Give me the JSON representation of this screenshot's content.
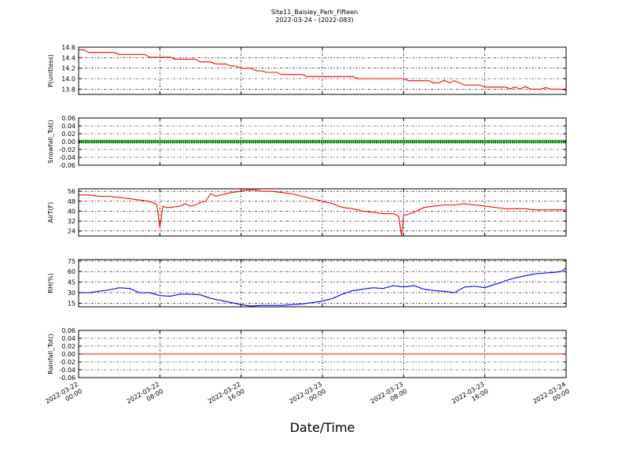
{
  "figure": {
    "title_line1": "Site11_Baisley_Park_Fifteen",
    "title_line2": "2022-03-24 - (2022-083)",
    "xlabel": "Date/Time"
  },
  "chart_data": [
    {
      "type": "line",
      "ylabel": "P(unitless)",
      "ylim": [
        13.7,
        14.6
      ],
      "yticks": [
        "14.6",
        "14.4",
        "14.2",
        "14.0",
        "13.8"
      ],
      "grid": true,
      "series": [
        {
          "color": "#ff0000",
          "x": [
            0,
            0.5,
            1,
            1.5,
            2,
            2.5,
            3,
            3.5,
            4,
            4.5,
            5,
            5.5,
            6,
            6.5,
            7,
            7.5,
            8,
            8.5,
            9,
            9.5,
            10,
            10.5,
            11,
            11.5,
            12,
            12.5,
            13,
            13.5,
            14,
            14.5,
            15,
            15.5,
            16,
            16.5,
            17,
            17.5,
            18,
            18.5,
            19,
            19.5,
            20,
            20.5,
            21,
            21.5,
            22,
            22.5,
            23,
            23.5,
            24,
            24.5,
            25,
            25.5,
            26,
            26.5,
            27,
            27.5,
            28,
            28.5,
            29,
            29.5,
            30,
            30.5,
            31,
            31.5,
            32,
            32.5,
            33,
            33.5,
            34,
            34.5,
            35,
            35.5,
            36,
            36.5,
            37,
            37.5,
            38,
            38.5,
            39,
            39.5,
            40,
            40.5,
            41,
            41.5,
            42,
            42.5,
            43,
            43.5,
            44,
            44.5,
            45,
            45.5,
            46,
            46.5,
            47,
            47.5,
            48
          ],
          "y": [
            14.55,
            14.55,
            14.5,
            14.5,
            14.5,
            14.5,
            14.5,
            14.5,
            14.46,
            14.46,
            14.46,
            14.46,
            14.46,
            14.46,
            14.41,
            14.41,
            14.41,
            14.41,
            14.41,
            14.37,
            14.37,
            14.37,
            14.37,
            14.37,
            14.32,
            14.32,
            14.32,
            14.28,
            14.28,
            14.28,
            14.24,
            14.24,
            14.2,
            14.2,
            14.2,
            14.15,
            14.15,
            14.12,
            14.12,
            14.12,
            14.08,
            14.08,
            14.08,
            14.08,
            14.08,
            14.04,
            14.04,
            14.04,
            14.04,
            14.04,
            14.04,
            14.04,
            14.04,
            14.04,
            14.04,
            14.0,
            14.0,
            14.0,
            14.0,
            14.0,
            14.0,
            14.0,
            14.0,
            14.0,
            14.0,
            13.96,
            13.96,
            13.96,
            13.96,
            13.96,
            13.92,
            13.92,
            13.97,
            13.92,
            13.96,
            13.92,
            13.88,
            13.88,
            13.88,
            13.88,
            13.84,
            13.84,
            13.84,
            13.84,
            13.84,
            13.81,
            13.84,
            13.8,
            13.85,
            13.8,
            13.8,
            13.8,
            13.83,
            13.8,
            13.8,
            13.8,
            13.78
          ]
        }
      ]
    },
    {
      "type": "line",
      "ylabel": "Snowfall_Tot()",
      "ylim": [
        -0.06,
        0.06
      ],
      "yticks": [
        "0.06",
        "0.04",
        "0.02",
        "0.00",
        "-0.02",
        "-0.04",
        "-0.06"
      ],
      "grid": true,
      "series": [
        {
          "color": "#008000",
          "marker": "dot",
          "x": [
            0,
            48
          ],
          "y": [
            0,
            0
          ]
        }
      ]
    },
    {
      "type": "line",
      "ylabel": "AirT(F)",
      "ylim": [
        20,
        58
      ],
      "yticks": [
        "56",
        "48",
        "40",
        "32",
        "24"
      ],
      "grid": true,
      "series": [
        {
          "color": "#ff0000",
          "x": [
            0,
            1,
            2,
            3,
            4,
            5,
            6,
            6.8,
            7.3,
            7.7,
            8,
            8.3,
            8.6,
            9,
            10,
            10.5,
            11,
            11.5,
            12,
            12.5,
            13,
            13.5,
            14,
            15,
            16,
            16.5,
            17,
            17.5,
            18,
            19,
            20,
            21,
            22,
            23,
            24,
            25,
            26,
            27,
            28,
            29,
            30,
            31,
            31.5,
            31.8,
            32,
            32.3,
            32.6,
            33,
            34,
            35,
            36,
            37,
            38,
            39,
            40,
            41,
            42,
            43,
            44,
            45,
            46,
            47,
            48
          ],
          "y": [
            53,
            53,
            52,
            52,
            51,
            50,
            49,
            48,
            47,
            45,
            27,
            44,
            43,
            43,
            44,
            46,
            44,
            45,
            47,
            48,
            54,
            52,
            53,
            55,
            56,
            57,
            57,
            57,
            56,
            56,
            55,
            54,
            52,
            50,
            48,
            46,
            43,
            42,
            40,
            39,
            38,
            38,
            36,
            20,
            37,
            37,
            38,
            39,
            43,
            44,
            45,
            45,
            46,
            45,
            44,
            43,
            42,
            42,
            42,
            41,
            41,
            41,
            41
          ]
        }
      ]
    },
    {
      "type": "line",
      "ylabel": "RH(%)",
      "ylim": [
        10,
        77
      ],
      "yticks": [
        "75",
        "60",
        "45",
        "30",
        "15"
      ],
      "grid": true,
      "series": [
        {
          "color": "#0000ff",
          "x": [
            0,
            1,
            2,
            3,
            4,
            5,
            6,
            7,
            8,
            9,
            10,
            11,
            12,
            13,
            14,
            15,
            16,
            17,
            18,
            19,
            20,
            21,
            22,
            23,
            24,
            25,
            26,
            27,
            28,
            29,
            30,
            31,
            32,
            33,
            34,
            35,
            36,
            37,
            38,
            39,
            40,
            41,
            41.5,
            42,
            43,
            44,
            45,
            46,
            47,
            47.5,
            48
          ],
          "y": [
            30,
            30,
            32,
            34,
            37,
            36,
            30,
            30,
            26,
            25,
            28,
            28,
            27,
            22,
            19,
            16,
            13,
            11,
            12,
            12,
            12,
            13,
            14,
            16,
            18,
            22,
            28,
            33,
            35,
            37,
            36,
            40,
            38,
            40,
            35,
            33,
            32,
            30,
            38,
            39,
            37,
            42,
            44,
            47,
            51,
            54,
            57,
            58,
            59,
            60,
            65
          ]
        }
      ]
    },
    {
      "type": "line",
      "ylabel": "Rainfall_Tot()",
      "ylim": [
        -0.06,
        0.06
      ],
      "yticks": [
        "0.06",
        "0.04",
        "0.02",
        "0.00",
        "-0.02",
        "-0.04",
        "-0.06"
      ],
      "grid": true,
      "series": [
        {
          "color": "#ff0000",
          "x": [
            0,
            48
          ],
          "y": [
            0,
            0
          ]
        }
      ]
    }
  ],
  "xaxis": {
    "range_hours": [
      0,
      48
    ],
    "tick_hours": [
      0,
      8,
      16,
      24,
      32,
      40,
      48
    ],
    "tick_labels": [
      [
        "2022-03-22",
        "00:00"
      ],
      [
        "2022-03-22",
        "08:00"
      ],
      [
        "2022-03-22",
        "16:00"
      ],
      [
        "2022-03-23",
        "00:00"
      ],
      [
        "2022-03-23",
        "08:00"
      ],
      [
        "2022-03-23",
        "16:00"
      ],
      [
        "2022-03-24",
        "00:00"
      ]
    ]
  }
}
